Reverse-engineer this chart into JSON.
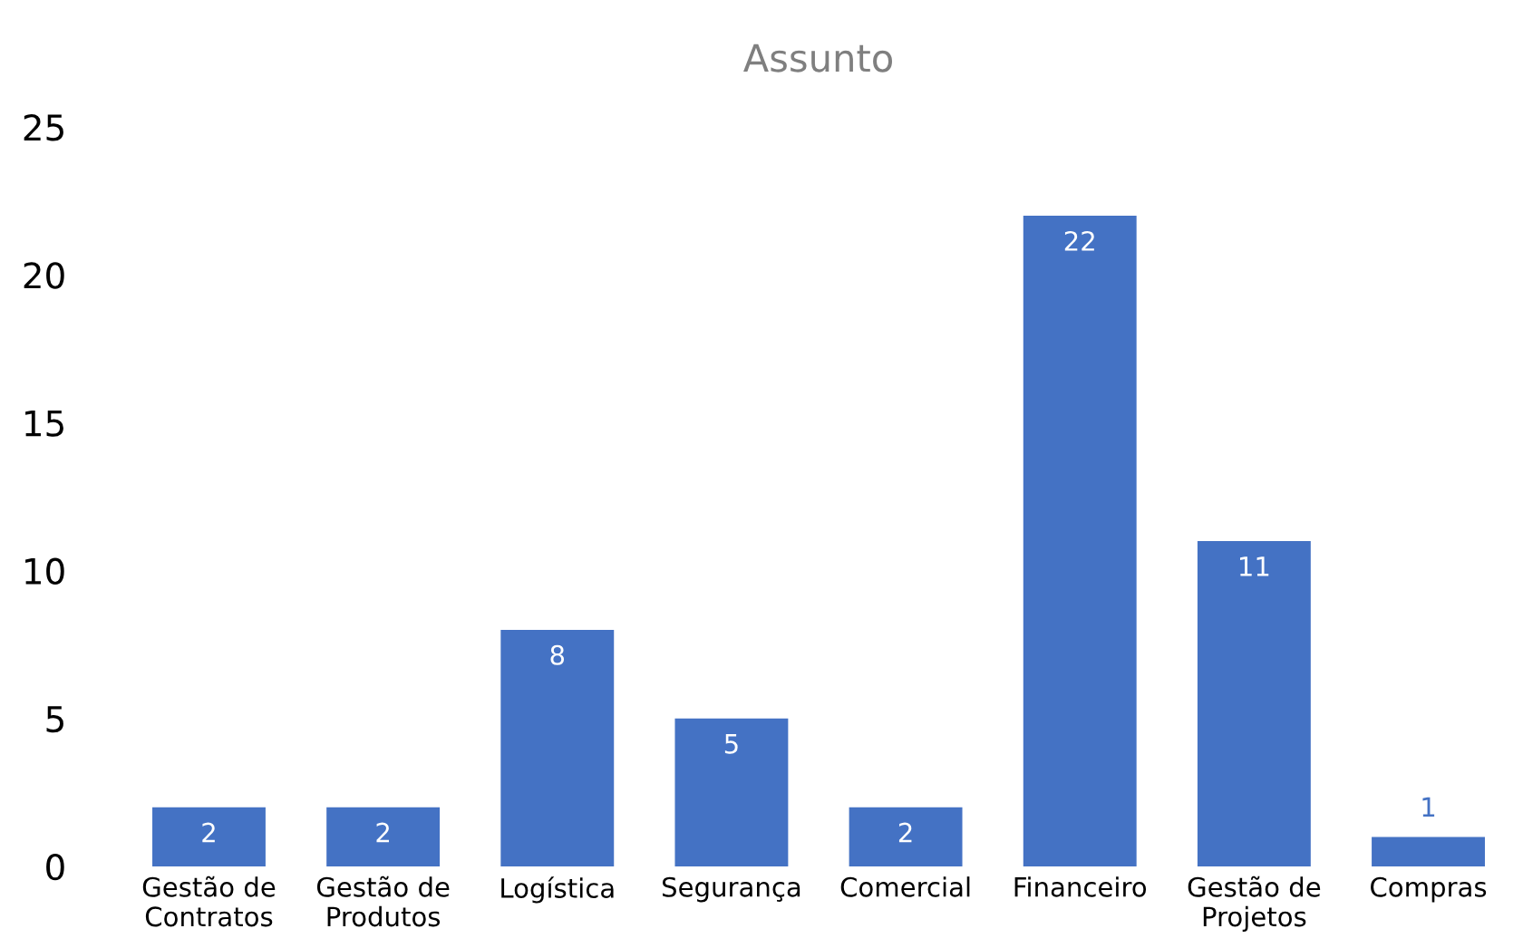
{
  "chart_data": {
    "type": "bar",
    "title": "Assunto",
    "categories": [
      "Gestão de\nContratos",
      "Gestão de\nProdutos",
      "Logística",
      "Segurança",
      "Comercial",
      "Financeiro",
      "Gestão de\nProjetos",
      "Compras"
    ],
    "values": [
      2,
      2,
      8,
      5,
      2,
      22,
      11,
      1
    ],
    "color": "#4472c4",
    "ylim": [
      0,
      25
    ],
    "yticks": [
      0,
      5,
      10,
      15,
      20,
      25
    ],
    "grid": false,
    "data_labels": true
  }
}
